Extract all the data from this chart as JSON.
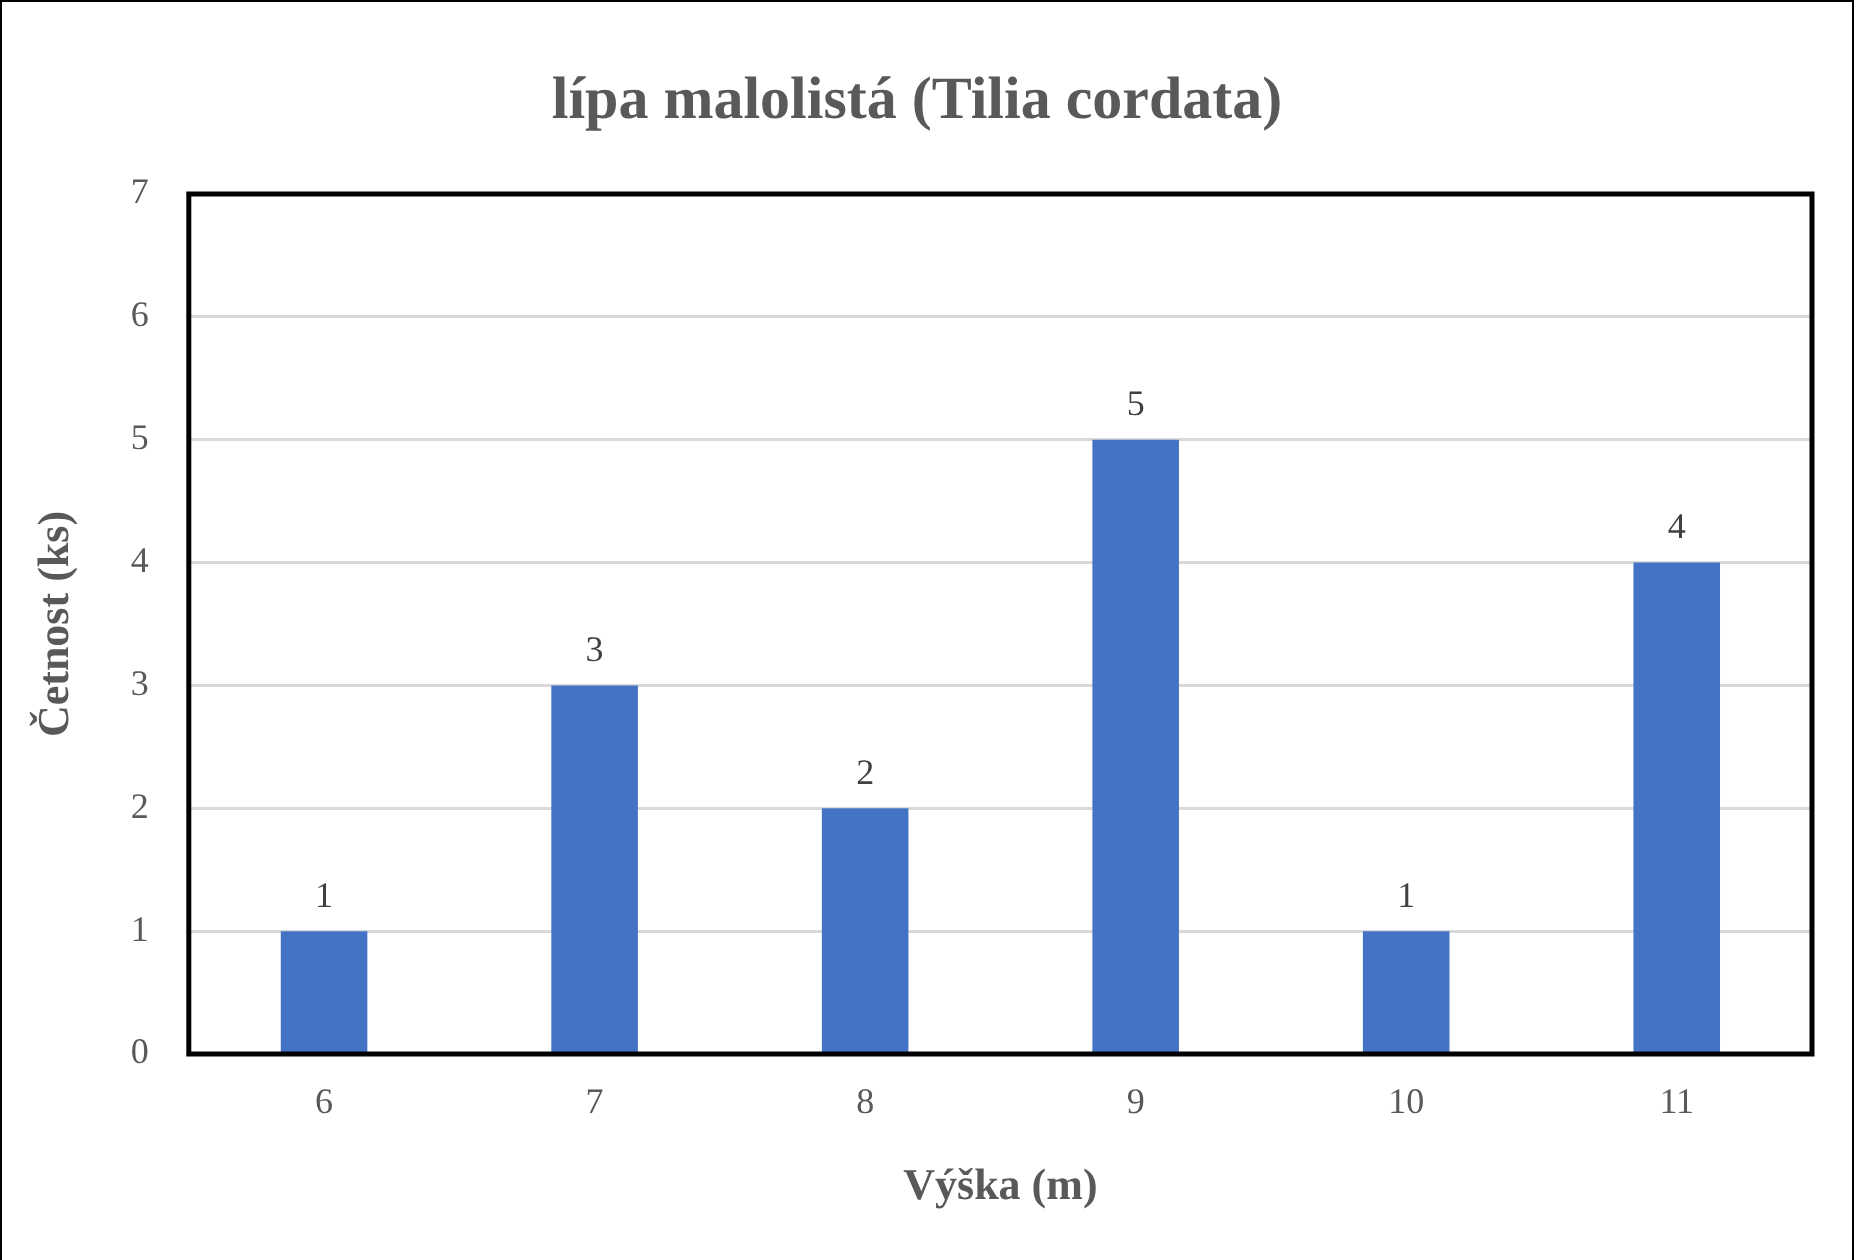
{
  "chart_data": {
    "type": "bar",
    "title": "lípa malolistá (Tilia cordata)",
    "xlabel": "Výška (m)",
    "ylabel": "Četnost (ks)",
    "categories": [
      "6",
      "7",
      "8",
      "9",
      "10",
      "11"
    ],
    "values": [
      1,
      3,
      2,
      5,
      1,
      4
    ],
    "color": "#4472c4",
    "ylim": [
      0,
      7
    ],
    "yticks": [
      0,
      1,
      2,
      3,
      4,
      5,
      6,
      7
    ],
    "grid": "y",
    "data_labels": true,
    "legend": false
  }
}
